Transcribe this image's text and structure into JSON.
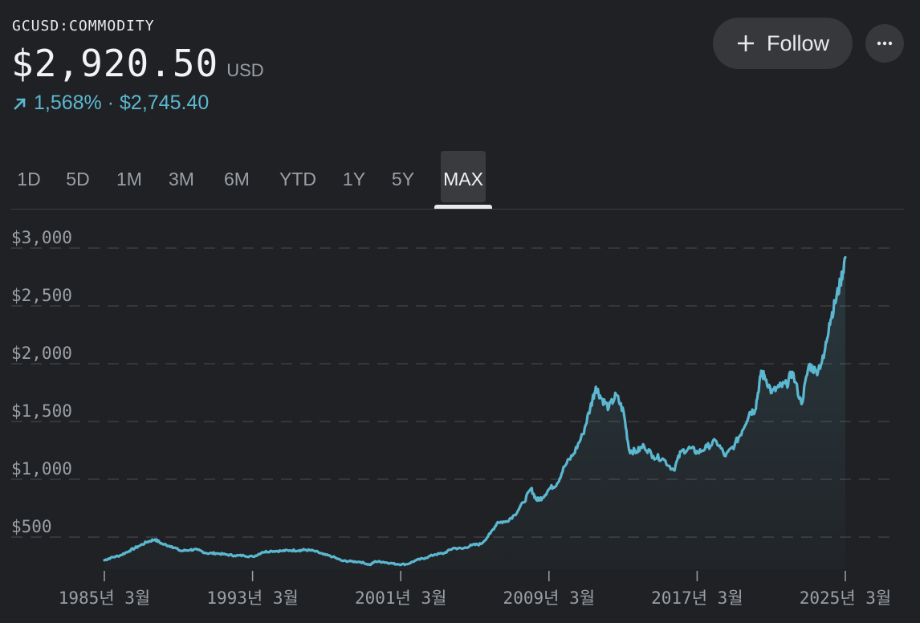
{
  "header": {
    "ticker": "GCUSD:COMMODITY",
    "price": "$2,920.50",
    "currency": "USD",
    "change": "1,568% · $2,745.40",
    "change_direction": "up",
    "follow_label": "Follow",
    "more_icon": "more-horizontal-icon"
  },
  "colors": {
    "background": "#202124",
    "accent": "#5bb8d0"
  },
  "tabs": [
    {
      "label": "1D",
      "active": false
    },
    {
      "label": "5D",
      "active": false
    },
    {
      "label": "1M",
      "active": false
    },
    {
      "label": "3M",
      "active": false
    },
    {
      "label": "6M",
      "active": false
    },
    {
      "label": "YTD",
      "active": false
    },
    {
      "label": "1Y",
      "active": false
    },
    {
      "label": "5Y",
      "active": false
    },
    {
      "label": "MAX",
      "active": true
    }
  ],
  "chart_data": {
    "type": "area",
    "ylim": [
      100,
      3000
    ],
    "ytick_values": [
      500,
      1000,
      1500,
      2000,
      2500,
      3000
    ],
    "yticks": [
      "$500",
      "$1,000",
      "$1,500",
      "$2,000",
      "$2,500",
      "$3,000"
    ],
    "xtick_values": [
      1985.167,
      1993.167,
      2001.167,
      2009.167,
      2017.167,
      2025.167
    ],
    "xticks": [
      "1985년 3월",
      "1993년 3월",
      "2001년 3월",
      "2009년 3월",
      "2017년 3월",
      "2025년 3월"
    ],
    "xlim": [
      1985.167,
      2025.167
    ],
    "grid": true,
    "series": [
      {
        "x": [
          1985.167,
          1985.5,
          1986.0,
          1986.5,
          1987.0,
          1987.5,
          1987.9,
          1988.3,
          1988.8,
          1989.3,
          1989.8,
          1990.2,
          1990.7,
          1991.2,
          1991.7,
          1992.2,
          1992.7,
          1993.2,
          1993.7,
          1994.2,
          1994.7,
          1995.2,
          1995.7,
          1996.0,
          1996.5,
          1997.0,
          1997.5,
          1998.0,
          1998.5,
          1999.0,
          1999.5,
          1999.8,
          2000.2,
          2000.6,
          2001.0,
          2001.5,
          2002.0,
          2002.5,
          2003.0,
          2003.5,
          2004.0,
          2004.5,
          2005.0,
          2005.5,
          2006.0,
          2006.4,
          2006.8,
          2007.3,
          2007.8,
          2008.2,
          2008.5,
          2008.8,
          2009.2,
          2009.6,
          2010.0,
          2010.5,
          2011.0,
          2011.4,
          2011.7,
          2012.0,
          2012.4,
          2012.8,
          2013.2,
          2013.5,
          2013.9,
          2014.3,
          2014.8,
          2015.3,
          2015.9,
          2016.3,
          2016.8,
          2017.2,
          2017.7,
          2018.2,
          2018.7,
          2019.2,
          2019.6,
          2020.0,
          2020.3,
          2020.6,
          2020.8,
          2021.2,
          2021.6,
          2022.0,
          2022.3,
          2022.8,
          2023.2,
          2023.6,
          2024.0,
          2024.3,
          2024.6,
          2024.9,
          2025.167
        ],
        "values": [
          300,
          320,
          340,
          380,
          420,
          460,
          480,
          440,
          420,
          380,
          390,
          390,
          360,
          360,
          350,
          340,
          340,
          330,
          370,
          380,
          380,
          385,
          385,
          390,
          380,
          350,
          330,
          295,
          290,
          285,
          260,
          290,
          285,
          275,
          265,
          265,
          300,
          320,
          350,
          360,
          405,
          400,
          430,
          440,
          530,
          630,
          630,
          690,
          800,
          920,
          820,
          840,
          920,
          960,
          1110,
          1220,
          1390,
          1620,
          1800,
          1700,
          1620,
          1730,
          1580,
          1250,
          1240,
          1290,
          1200,
          1180,
          1080,
          1240,
          1270,
          1230,
          1280,
          1330,
          1200,
          1300,
          1420,
          1580,
          1600,
          1900,
          1900,
          1750,
          1800,
          1820,
          1930,
          1650,
          1990,
          1930,
          2050,
          2350,
          2520,
          2700,
          2920
        ]
      }
    ]
  }
}
